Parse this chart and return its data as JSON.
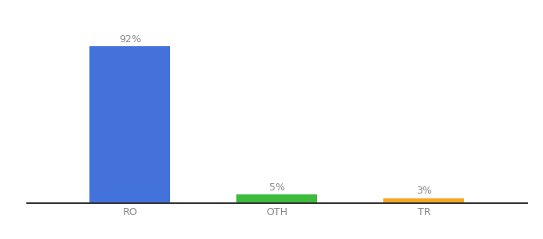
{
  "categories": [
    "RO",
    "OTH",
    "TR"
  ],
  "values": [
    92,
    5,
    3
  ],
  "bar_colors": [
    "#4472db",
    "#3dbb3d",
    "#f5a623"
  ],
  "labels": [
    "92%",
    "5%",
    "3%"
  ],
  "ylim": [
    0,
    105
  ],
  "label_fontsize": 9,
  "tick_fontsize": 9,
  "tick_color": "#888888",
  "label_color": "#888888",
  "background_color": "#ffffff",
  "bar_width": 0.55
}
